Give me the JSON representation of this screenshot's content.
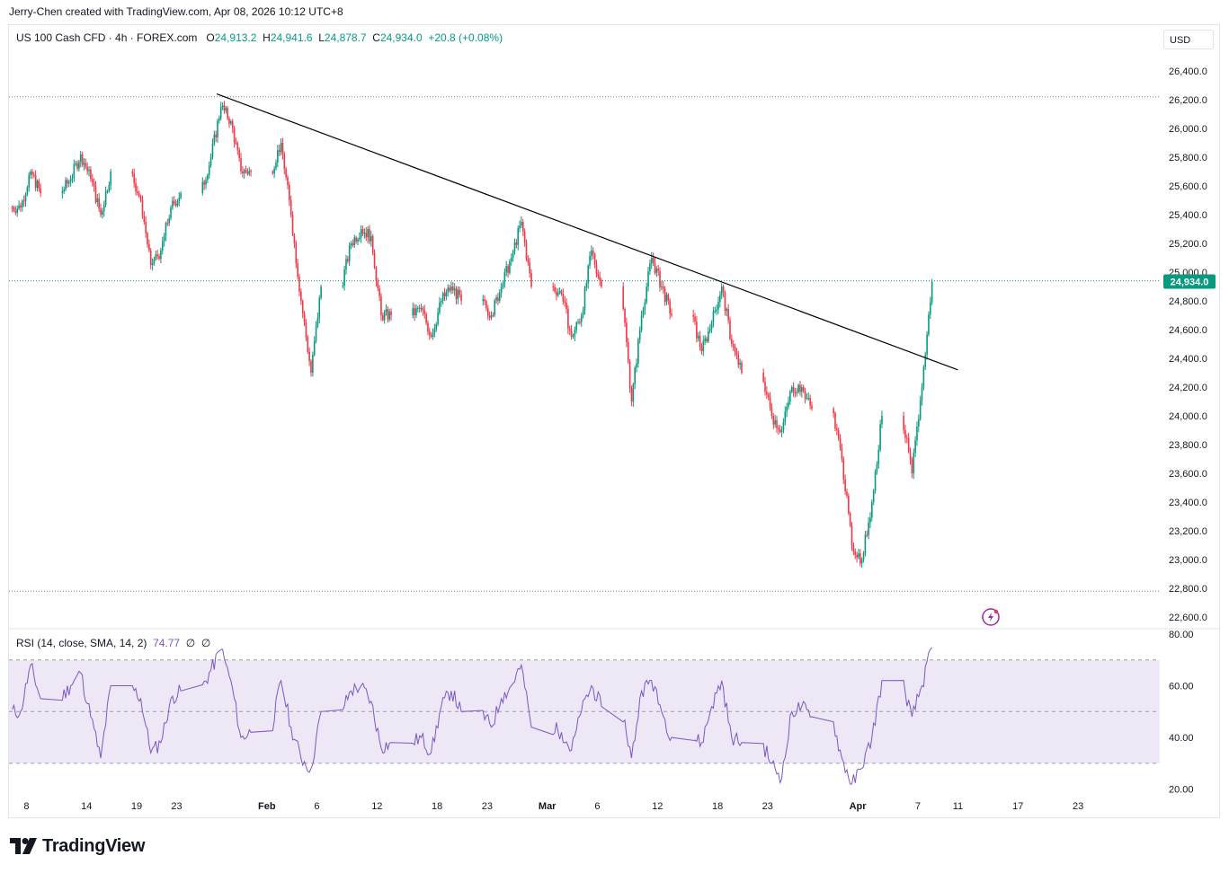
{
  "attribution": "Jerry-Chen created with TradingView.com, Apr 08, 2026 10:12 UTC+8",
  "legend": {
    "symbol": "US 100 Cash CFD · 4h · FOREX.com",
    "o_label": "O",
    "o_value": "24,913.2",
    "h_label": "H",
    "h_value": "24,941.6",
    "l_label": "L",
    "l_value": "24,878.7",
    "c_label": "C",
    "c_value": "24,934.0",
    "change": "+20.8 (+0.08%)"
  },
  "currency": "USD",
  "price_badge": "24,934.0",
  "logo_text": "TradingView",
  "rsi_legend": {
    "label": "RSI (14, close, SMA, 14, 2)",
    "value": "74.77",
    "extra1": "∅",
    "extra2": "∅"
  },
  "colors": {
    "up": "#089981",
    "down": "#f23645",
    "rsi": "#7e57c2",
    "band": "#ede7f6",
    "trendline": "#000000"
  },
  "chart_data": [
    {
      "type": "candlestick",
      "interval": "4h",
      "ylim": [
        22500,
        26500
      ],
      "y_ticks": [
        "26,400.0",
        "26,200.0",
        "26,000.0",
        "25,800.0",
        "25,600.0",
        "25,400.0",
        "25,200.0",
        "25,000.0",
        "24,800.0",
        "24,600.0",
        "24,400.0",
        "24,200.0",
        "24,000.0",
        "23,800.0",
        "23,600.0",
        "23,400.0",
        "23,200.0",
        "23,000.0",
        "22,800.0",
        "22,600.0"
      ],
      "x_ticks": [
        "8",
        "14",
        "19",
        "23",
        "Feb",
        "6",
        "12",
        "18",
        "23",
        "Mar",
        "6",
        "12",
        "18",
        "23",
        "Apr",
        "7",
        "11",
        "17",
        "23"
      ],
      "last_close": 24934.0,
      "horizontal_levels": [
        26220,
        24940,
        22780
      ],
      "trendline": {
        "start": {
          "date": "2026-01-27",
          "price": 26240
        },
        "end": {
          "date": "2026-04-11",
          "price": 24320
        }
      },
      "close_path": [
        [
          "2026-01-07",
          25450
        ],
        [
          "2026-01-08",
          25700
        ],
        [
          "2026-01-09",
          25550
        ],
        [
          "2026-01-12",
          25650
        ],
        [
          "2026-01-13",
          25820
        ],
        [
          "2026-01-14",
          25650
        ],
        [
          "2026-01-15",
          25400
        ],
        [
          "2026-01-16",
          25700
        ],
        [
          "2026-01-19",
          25500
        ],
        [
          "2026-01-20",
          25050
        ],
        [
          "2026-01-21",
          25150
        ],
        [
          "2026-01-22",
          25450
        ],
        [
          "2026-01-23",
          25550
        ],
        [
          "2026-01-26",
          25800
        ],
        [
          "2026-01-27",
          26150
        ],
        [
          "2026-01-28",
          26050
        ],
        [
          "2026-01-29",
          25700
        ],
        [
          "2026-01-30",
          25700
        ],
        [
          "2026-02-02",
          25900
        ],
        [
          "2026-02-03",
          25400
        ],
        [
          "2026-02-04",
          24800
        ],
        [
          "2026-02-05",
          24300
        ],
        [
          "2026-02-06",
          24900
        ],
        [
          "2026-02-09",
          25200
        ],
        [
          "2026-02-10",
          25300
        ],
        [
          "2026-02-11",
          25250
        ],
        [
          "2026-02-12",
          24700
        ],
        [
          "2026-02-13",
          24700
        ],
        [
          "2026-02-16",
          24750
        ],
        [
          "2026-02-17",
          24550
        ],
        [
          "2026-02-18",
          24800
        ],
        [
          "2026-02-19",
          24900
        ],
        [
          "2026-02-20",
          24800
        ],
        [
          "2026-02-23",
          24700
        ],
        [
          "2026-02-24",
          24900
        ],
        [
          "2026-02-25",
          25100
        ],
        [
          "2026-02-26",
          25350
        ],
        [
          "2026-02-27",
          24900
        ],
        [
          "2026-03-02",
          24850
        ],
        [
          "2026-03-03",
          24550
        ],
        [
          "2026-03-04",
          24700
        ],
        [
          "2026-03-05",
          25150
        ],
        [
          "2026-03-06",
          24900
        ],
        [
          "2026-03-09",
          24100
        ],
        [
          "2026-03-10",
          24700
        ],
        [
          "2026-03-11",
          25100
        ],
        [
          "2026-03-12",
          24900
        ],
        [
          "2026-03-13",
          24700
        ],
        [
          "2026-03-16",
          24450
        ],
        [
          "2026-03-17",
          24650
        ],
        [
          "2026-03-18",
          24900
        ],
        [
          "2026-03-19",
          24500
        ],
        [
          "2026-03-20",
          24300
        ],
        [
          "2026-03-23",
          24000
        ],
        [
          "2026-03-24",
          23900
        ],
        [
          "2026-03-25",
          24200
        ],
        [
          "2026-03-26",
          24200
        ],
        [
          "2026-03-27",
          24050
        ],
        [
          "2026-03-30",
          23700
        ],
        [
          "2026-03-31",
          23100
        ],
        [
          "2026-04-01",
          23000
        ],
        [
          "2026-04-02",
          23400
        ],
        [
          "2026-04-03",
          24000
        ],
        [
          "2026-04-06",
          23600
        ],
        [
          "2026-04-07",
          24200
        ],
        [
          "2026-04-08",
          24934
        ]
      ]
    },
    {
      "type": "line",
      "name": "RSI (14, close, SMA, 14, 2)",
      "ylim": [
        15,
        80
      ],
      "y_ticks": [
        "80.00",
        "60.00",
        "40.00",
        "20.00"
      ],
      "bands": [
        30,
        50,
        70
      ],
      "last_value": 74.77,
      "x": [
        "2026-01-07",
        "2026-01-08",
        "2026-01-09",
        "2026-01-12",
        "2026-01-13",
        "2026-01-14",
        "2026-01-15",
        "2026-01-16",
        "2026-01-19",
        "2026-01-20",
        "2026-01-21",
        "2026-01-22",
        "2026-01-23",
        "2026-01-26",
        "2026-01-27",
        "2026-01-28",
        "2026-01-29",
        "2026-01-30",
        "2026-02-02",
        "2026-02-03",
        "2026-02-04",
        "2026-02-05",
        "2026-02-06",
        "2026-02-09",
        "2026-02-10",
        "2026-02-11",
        "2026-02-12",
        "2026-02-13",
        "2026-02-16",
        "2026-02-17",
        "2026-02-18",
        "2026-02-19",
        "2026-02-20",
        "2026-02-23",
        "2026-02-24",
        "2026-02-25",
        "2026-02-26",
        "2026-02-27",
        "2026-03-02",
        "2026-03-03",
        "2026-03-04",
        "2026-03-05",
        "2026-03-06",
        "2026-03-09",
        "2026-03-10",
        "2026-03-11",
        "2026-03-12",
        "2026-03-13",
        "2026-03-16",
        "2026-03-17",
        "2026-03-18",
        "2026-03-19",
        "2026-03-20",
        "2026-03-23",
        "2026-03-24",
        "2026-03-25",
        "2026-03-26",
        "2026-03-27",
        "2026-03-30",
        "2026-03-31",
        "2026-04-01",
        "2026-04-02",
        "2026-04-03",
        "2026-04-06",
        "2026-04-07",
        "2026-04-08"
      ],
      "values": [
        50,
        68,
        55,
        60,
        65,
        48,
        32,
        60,
        55,
        34,
        38,
        55,
        58,
        66,
        74,
        62,
        40,
        42,
        62,
        44,
        32,
        28,
        50,
        58,
        60,
        54,
        36,
        38,
        40,
        34,
        52,
        58,
        50,
        44,
        55,
        60,
        68,
        44,
        42,
        35,
        50,
        60,
        52,
        32,
        58,
        62,
        50,
        40,
        38,
        52,
        62,
        40,
        38,
        30,
        24,
        50,
        52,
        48,
        32,
        22,
        28,
        40,
        62,
        48,
        60,
        74.77
      ]
    }
  ]
}
